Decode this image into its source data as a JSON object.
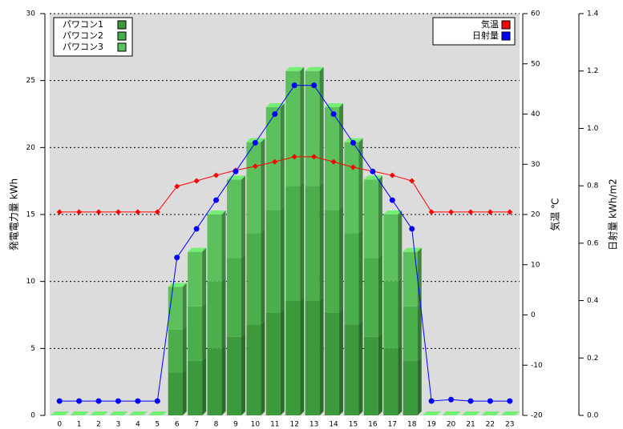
{
  "chart_data": {
    "type": "bar",
    "stacked": true,
    "categories": [
      "0",
      "1",
      "2",
      "3",
      "4",
      "5",
      "6",
      "7",
      "8",
      "9",
      "10",
      "11",
      "12",
      "13",
      "14",
      "15",
      "16",
      "17",
      "18",
      "19",
      "20",
      "21",
      "22",
      "23"
    ],
    "series": [
      {
        "name": "パワコン1",
        "type": "bar",
        "color": "#3c9a3c",
        "values": [
          0,
          0,
          0,
          0,
          0,
          0,
          3.2,
          4.07,
          5,
          5.87,
          6.8,
          7.67,
          8.57,
          8.57,
          7.67,
          6.8,
          5.87,
          5,
          4.07,
          0,
          0,
          0,
          0,
          0
        ]
      },
      {
        "name": "パワコン2",
        "type": "bar",
        "color": "#4aae4a",
        "values": [
          0,
          0,
          0,
          0,
          0,
          0,
          3.2,
          4.07,
          5,
          5.87,
          6.8,
          7.67,
          8.57,
          8.57,
          7.67,
          6.8,
          5.87,
          5,
          4.07,
          0,
          0,
          0,
          0,
          0
        ]
      },
      {
        "name": "パワコン3",
        "type": "bar",
        "color": "#5cc05c",
        "values": [
          0,
          0,
          0,
          0,
          0,
          0,
          3.2,
          4.07,
          5,
          5.87,
          6.8,
          7.67,
          8.57,
          8.57,
          7.67,
          6.8,
          5.87,
          5,
          4.07,
          0,
          0,
          0,
          0,
          0
        ]
      },
      {
        "name": "気温",
        "type": "line",
        "axis": "y2",
        "color": "#ff0000",
        "values": [
          20.5,
          20.5,
          20.5,
          20.5,
          20.5,
          20.5,
          25.6,
          26.7,
          27.8,
          28.8,
          29.6,
          30.5,
          31.5,
          31.5,
          30.5,
          29.4,
          28.6,
          27.8,
          26.7,
          20.5,
          20.5,
          20.5,
          20.5,
          20.5
        ]
      },
      {
        "name": "日射量",
        "type": "line",
        "axis": "y3",
        "color": "#0000ff",
        "values": [
          0.05,
          0.05,
          0.05,
          0.05,
          0.05,
          0.05,
          0.55,
          0.65,
          0.75,
          0.85,
          0.95,
          1.05,
          1.15,
          1.15,
          1.05,
          0.95,
          0.85,
          0.75,
          0.65,
          0.05,
          0.055,
          0.05,
          0.05,
          0.05
        ]
      }
    ],
    "ylabel": "発電電力量 kWh",
    "y2label": "気温 ℃",
    "y3label": "日射量 kWh/m2",
    "ylim": [
      0,
      30
    ],
    "yticks": [
      0,
      5,
      10,
      15,
      20,
      25,
      30
    ],
    "y2lim": [
      -20,
      60
    ],
    "y2ticks": [
      -20,
      -10,
      0,
      10,
      20,
      30,
      40,
      50,
      60
    ],
    "y3lim": [
      0,
      1.4
    ],
    "y3ticks": [
      {
        "value": 0,
        "label": "0.0"
      },
      0.2,
      0.4,
      0.6,
      0.8,
      {
        "value": 1,
        "label": "1.0"
      },
      1.2,
      1.4
    ],
    "grid": true
  }
}
